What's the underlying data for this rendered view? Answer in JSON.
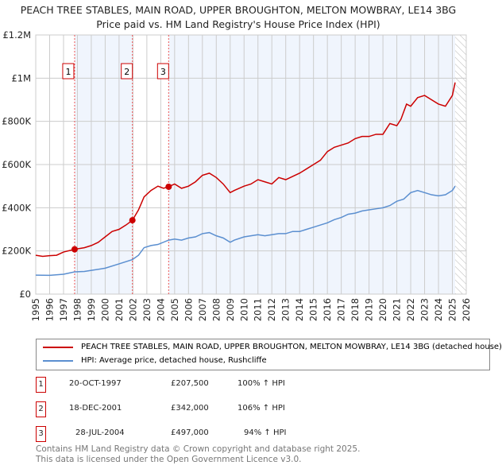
{
  "title": "PEACH TREE STABLES, MAIN ROAD, UPPER BROUGHTON, MELTON MOWBRAY, LE14 3BG",
  "subtitle": "Price paid vs. HM Land Registry's House Price Index (HPI)",
  "chart_data": {
    "type": "line",
    "xlim": [
      1995,
      2026
    ],
    "ylim": [
      0,
      1200000
    ],
    "yticks": [
      {
        "v": 0,
        "l": "£0"
      },
      {
        "v": 200000,
        "l": "£200K"
      },
      {
        "v": 400000,
        "l": "£400K"
      },
      {
        "v": 600000,
        "l": "£600K"
      },
      {
        "v": 800000,
        "l": "£800K"
      },
      {
        "v": 1000000,
        "l": "£1M"
      },
      {
        "v": 1200000,
        "l": "£1.2M"
      }
    ],
    "xticks": [
      "1995",
      "1996",
      "1997",
      "1998",
      "1999",
      "2000",
      "2001",
      "2002",
      "2003",
      "2004",
      "2005",
      "2006",
      "2007",
      "2008",
      "2009",
      "2010",
      "2011",
      "2012",
      "2013",
      "2014",
      "2015",
      "2016",
      "2017",
      "2018",
      "2019",
      "2020",
      "2021",
      "2022",
      "2023",
      "2024",
      "2025",
      "2026"
    ],
    "series": [
      {
        "name": "PEACH TREE STABLES, MAIN ROAD, UPPER BROUGHTON, MELTON MOWBRAY, LE14 3BG (detached house)",
        "color": "#cc0000",
        "x": [
          1995,
          1995.5,
          1996,
          1996.5,
          1997,
          1997.8,
          1998.5,
          1999,
          1999.5,
          2000,
          2000.5,
          2001,
          2001.5,
          2001.96,
          2002.4,
          2002.8,
          2003.3,
          2003.8,
          2004.2,
          2004.57,
          2005,
          2005.5,
          2006,
          2006.5,
          2007,
          2007.5,
          2008,
          2008.5,
          2009,
          2009.3,
          2010,
          2010.5,
          2011,
          2011.5,
          2012,
          2012.5,
          2013,
          2013.5,
          2014,
          2014.5,
          2015,
          2015.5,
          2016,
          2016.5,
          2017,
          2017.5,
          2018,
          2018.5,
          2019,
          2019.5,
          2020,
          2020.5,
          2021,
          2021.3,
          2021.7,
          2022,
          2022.5,
          2023,
          2023.5,
          2024,
          2024.5,
          2025,
          2025.2
        ],
        "y": [
          180000,
          175000,
          178000,
          180000,
          195000,
          207500,
          215000,
          225000,
          240000,
          265000,
          290000,
          300000,
          320000,
          342000,
          390000,
          450000,
          480000,
          500000,
          490000,
          497000,
          510000,
          490000,
          500000,
          520000,
          550000,
          560000,
          540000,
          510000,
          470000,
          480000,
          500000,
          510000,
          530000,
          520000,
          510000,
          540000,
          530000,
          545000,
          560000,
          580000,
          600000,
          620000,
          660000,
          680000,
          690000,
          700000,
          720000,
          730000,
          730000,
          740000,
          740000,
          790000,
          780000,
          810000,
          880000,
          870000,
          910000,
          920000,
          900000,
          880000,
          870000,
          920000,
          980000
        ]
      },
      {
        "name": "HPI: Average price, detached house, Rushcliffe",
        "color": "#5b8fd0",
        "x": [
          1995,
          1996,
          1997,
          1997.8,
          1998.5,
          1999,
          2000,
          2001,
          2001.96,
          2002.4,
          2002.8,
          2003.3,
          2003.8,
          2004.57,
          2005,
          2005.5,
          2006,
          2006.5,
          2007,
          2007.5,
          2008,
          2008.5,
          2009,
          2009.3,
          2010,
          2010.5,
          2011,
          2011.5,
          2012,
          2012.5,
          2013,
          2013.5,
          2014,
          2014.5,
          2015,
          2015.5,
          2016,
          2016.5,
          2017,
          2017.5,
          2018,
          2018.5,
          2019,
          2019.5,
          2020,
          2020.5,
          2021,
          2021.5,
          2022,
          2022.5,
          2023,
          2023.5,
          2024,
          2024.5,
          2025,
          2025.2
        ],
        "y": [
          88000,
          87000,
          92000,
          103000,
          105000,
          110000,
          120000,
          140000,
          160000,
          180000,
          215000,
          225000,
          230000,
          250000,
          255000,
          250000,
          260000,
          265000,
          280000,
          285000,
          270000,
          260000,
          240000,
          250000,
          265000,
          270000,
          275000,
          270000,
          275000,
          280000,
          280000,
          290000,
          290000,
          300000,
          310000,
          320000,
          330000,
          345000,
          355000,
          370000,
          375000,
          385000,
          390000,
          395000,
          400000,
          410000,
          430000,
          440000,
          470000,
          480000,
          470000,
          460000,
          455000,
          460000,
          480000,
          500000
        ]
      }
    ],
    "sales": [
      {
        "n": "1",
        "x": 1997.8,
        "y": 207500
      },
      {
        "n": "2",
        "x": 2001.96,
        "y": 342000
      },
      {
        "n": "3",
        "x": 2004.57,
        "y": 497000
      }
    ]
  },
  "legend": {
    "red": "PEACH TREE STABLES, MAIN ROAD, UPPER BROUGHTON, MELTON MOWBRAY, LE14 3BG (detached house)",
    "blue": "HPI: Average price, detached house, Rushcliffe"
  },
  "table": [
    {
      "n": "1",
      "date": "20-OCT-1997",
      "price": "£207,500",
      "hpi": "100% ↑ HPI"
    },
    {
      "n": "2",
      "date": "18-DEC-2001",
      "price": "£342,000",
      "hpi": "106% ↑ HPI"
    },
    {
      "n": "3",
      "date": "28-JUL-2004",
      "price": "£497,000",
      "hpi": "94% ↑ HPI"
    }
  ],
  "footer": [
    "Contains HM Land Registry data © Crown copyright and database right 2025.",
    "This data is licensed under the Open Government Licence v3.0."
  ]
}
